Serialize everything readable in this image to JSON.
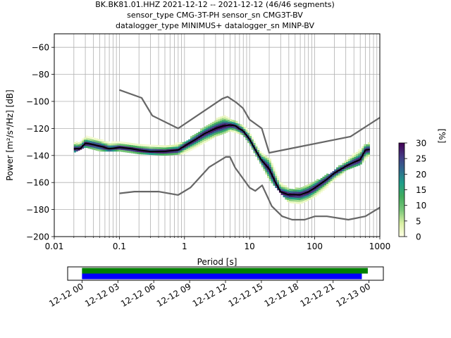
{
  "title_lines": [
    "BK.BK81.01.HHZ   2021-12-12 -- 2021-12-12  (46/46 segments)",
    "sensor_type CMG-3T-PH sensor_sn CMG3T-BV",
    "datalogger_type MINIMUS+ datalogger_sn MINP-BV"
  ],
  "chart_data": [
    {
      "type": "heatmap",
      "subtype": "probabilistic-power-spectral-density",
      "xlabel": "Period [s]",
      "ylabel": "Power [m²/s⁴/Hz] [dB]",
      "xscale": "log",
      "xlim": [
        0.01,
        1000
      ],
      "ylim": [
        -200,
        -50
      ],
      "x_tick_values": [
        0.01,
        0.1,
        1,
        10,
        100,
        1000
      ],
      "x_tick_labels": [
        "0.01",
        "0.1",
        "1",
        "10",
        "100",
        "1000"
      ],
      "y_tick_values": [
        -60,
        -80,
        -100,
        -120,
        -140,
        -160,
        -180,
        -200
      ],
      "y_tick_labels": [
        "−60",
        "−80",
        "−100",
        "−120",
        "−140",
        "−160",
        "−180",
        "−200"
      ],
      "grid": true,
      "colormap": [
        "#ffffe5",
        "#d9f0a3",
        "#78c679",
        "#41ab5d",
        "#1f9e89",
        "#31688e",
        "#443983",
        "#440154"
      ],
      "colorbar": {
        "label": "[%]",
        "range": [
          0,
          30
        ],
        "tick_values": [
          0,
          5,
          10,
          15,
          20,
          25,
          30
        ],
        "tick_labels": [
          "0",
          "5",
          "10",
          "15",
          "20",
          "25",
          "30"
        ]
      },
      "series": [
        {
          "role": "noise-model-high",
          "color": "#666666",
          "x": [
            0.1,
            0.22,
            0.32,
            0.8,
            3.8,
            4.6,
            6.3,
            7.9,
            10,
            15.4,
            20,
            354.8,
            1000
          ],
          "y": [
            -91.5,
            -97.4,
            -110.5,
            -120,
            -98,
            -96.5,
            -101,
            -105,
            -113.5,
            -120,
            -138,
            -126,
            -112
          ]
        },
        {
          "role": "noise-model-low",
          "color": "#666666",
          "x": [
            0.1,
            0.17,
            0.4,
            0.8,
            1.24,
            2.4,
            4.3,
            5.0,
            6.0,
            10,
            12.2,
            15.6,
            21.9,
            31.6,
            45,
            70,
            101,
            154,
            328,
            600,
            1000
          ],
          "y": [
            -168,
            -166.7,
            -166.7,
            -169.2,
            -163.7,
            -148.6,
            -141.1,
            -141.1,
            -149,
            -163.8,
            -166.2,
            -162.1,
            -177.5,
            -185,
            -187.5,
            -187.5,
            -185,
            -185,
            -187.5,
            -185,
            -178.5
          ]
        },
        {
          "role": "mean",
          "color": "#000000",
          "x": [
            0.02,
            0.025,
            0.03,
            0.04,
            0.05,
            0.07,
            0.1,
            0.15,
            0.2,
            0.3,
            0.5,
            0.8,
            1,
            1.5,
            2,
            3,
            4,
            5,
            6,
            8,
            10,
            12,
            15,
            20,
            25,
            30,
            40,
            60,
            80,
            100,
            150,
            200,
            300,
            400,
            500,
            600,
            700
          ],
          "y": [
            -135,
            -135,
            -131,
            -132,
            -133,
            -135,
            -134,
            -135,
            -136,
            -137,
            -137,
            -136,
            -133,
            -128,
            -124,
            -120,
            -118,
            -117.5,
            -118,
            -122,
            -128,
            -135,
            -143,
            -150,
            -160,
            -167,
            -169,
            -169,
            -167,
            -164,
            -158,
            -153,
            -148,
            -145,
            -143,
            -136,
            -135.5
          ]
        }
      ],
      "density_bands": [
        {
          "x": [
            0.02,
            0.03,
            0.05,
            0.1,
            0.2,
            0.5,
            1,
            2,
            3,
            4,
            5,
            8,
            10,
            15,
            20,
            30,
            40,
            60,
            100,
            200,
            300,
            500,
            700
          ],
          "y_low": [
            -138,
            -134,
            -137,
            -137,
            -139,
            -140,
            -139,
            -131,
            -126,
            -124,
            -122,
            -125,
            -132,
            -147,
            -158,
            -168,
            -175,
            -176,
            -171,
            -160,
            -151,
            -147,
            -140
          ],
          "y_high": [
            -130,
            -126,
            -129,
            -131,
            -132,
            -133,
            -131,
            -120,
            -114,
            -111,
            -114,
            -118,
            -124,
            -139,
            -142,
            -158,
            -165,
            -165,
            -160,
            -152,
            -144,
            -135,
            -131
          ],
          "peak_percent": 30
        }
      ]
    },
    {
      "type": "timeline",
      "tick_labels": [
        "12-12 00",
        "12-12 03",
        "12-12 06",
        "12-12 09",
        "12-12 12",
        "12-12 15",
        "12-12 18",
        "12-12 21",
        "12-13 00"
      ],
      "tick_hours": [
        0,
        3,
        6,
        9,
        12,
        15,
        18,
        21,
        24
      ],
      "xlim_hours": [
        -1.2,
        25.2
      ],
      "series": [
        {
          "color": "#008000",
          "start_hour": 0,
          "end_hour": 23.9
        },
        {
          "color": "#0000ff",
          "start_hour": 0,
          "end_hour": 23.4
        }
      ]
    }
  ]
}
